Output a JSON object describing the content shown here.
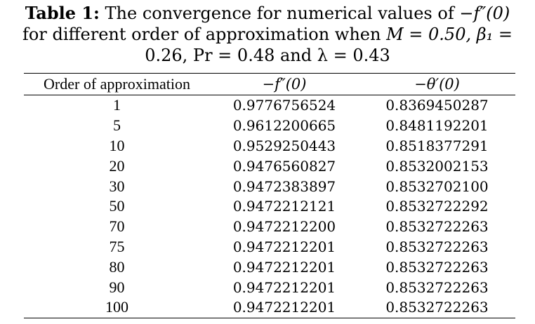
{
  "caption": {
    "lead": "Table 1:",
    "line1_text": " The convergence for numerical values of −",
    "line1_math": "f″(0)",
    "line2_text": "for different order of approximation when ",
    "line2_math": "M = 0.50, β₁ =",
    "line3_math": "0.26, Pr = 0.48  and  λ = 0.43"
  },
  "table": {
    "headers": [
      "Order of approximation",
      "−f″(0)",
      "−θ′(0)"
    ],
    "rows": [
      [
        "1",
        "0.9776756524",
        "0.8369450287"
      ],
      [
        "5",
        "0.9612200665",
        "0.8481192201"
      ],
      [
        "10",
        "0.9529250443",
        "0.8518377291"
      ],
      [
        "20",
        "0.9476560827",
        "0.8532002153"
      ],
      [
        "30",
        "0.9472383897",
        "0.8532702100"
      ],
      [
        "50",
        "0.9472212121",
        "0.8532722292"
      ],
      [
        "70",
        "0.9472212200",
        "0.8532722263"
      ],
      [
        "75",
        "0.9472212201",
        "0.8532722263"
      ],
      [
        "80",
        "0.9472212201",
        "0.8532722263"
      ],
      [
        "90",
        "0.9472212201",
        "0.8532722263"
      ],
      [
        "100",
        "0.9472212201",
        "0.8532722263"
      ]
    ]
  }
}
